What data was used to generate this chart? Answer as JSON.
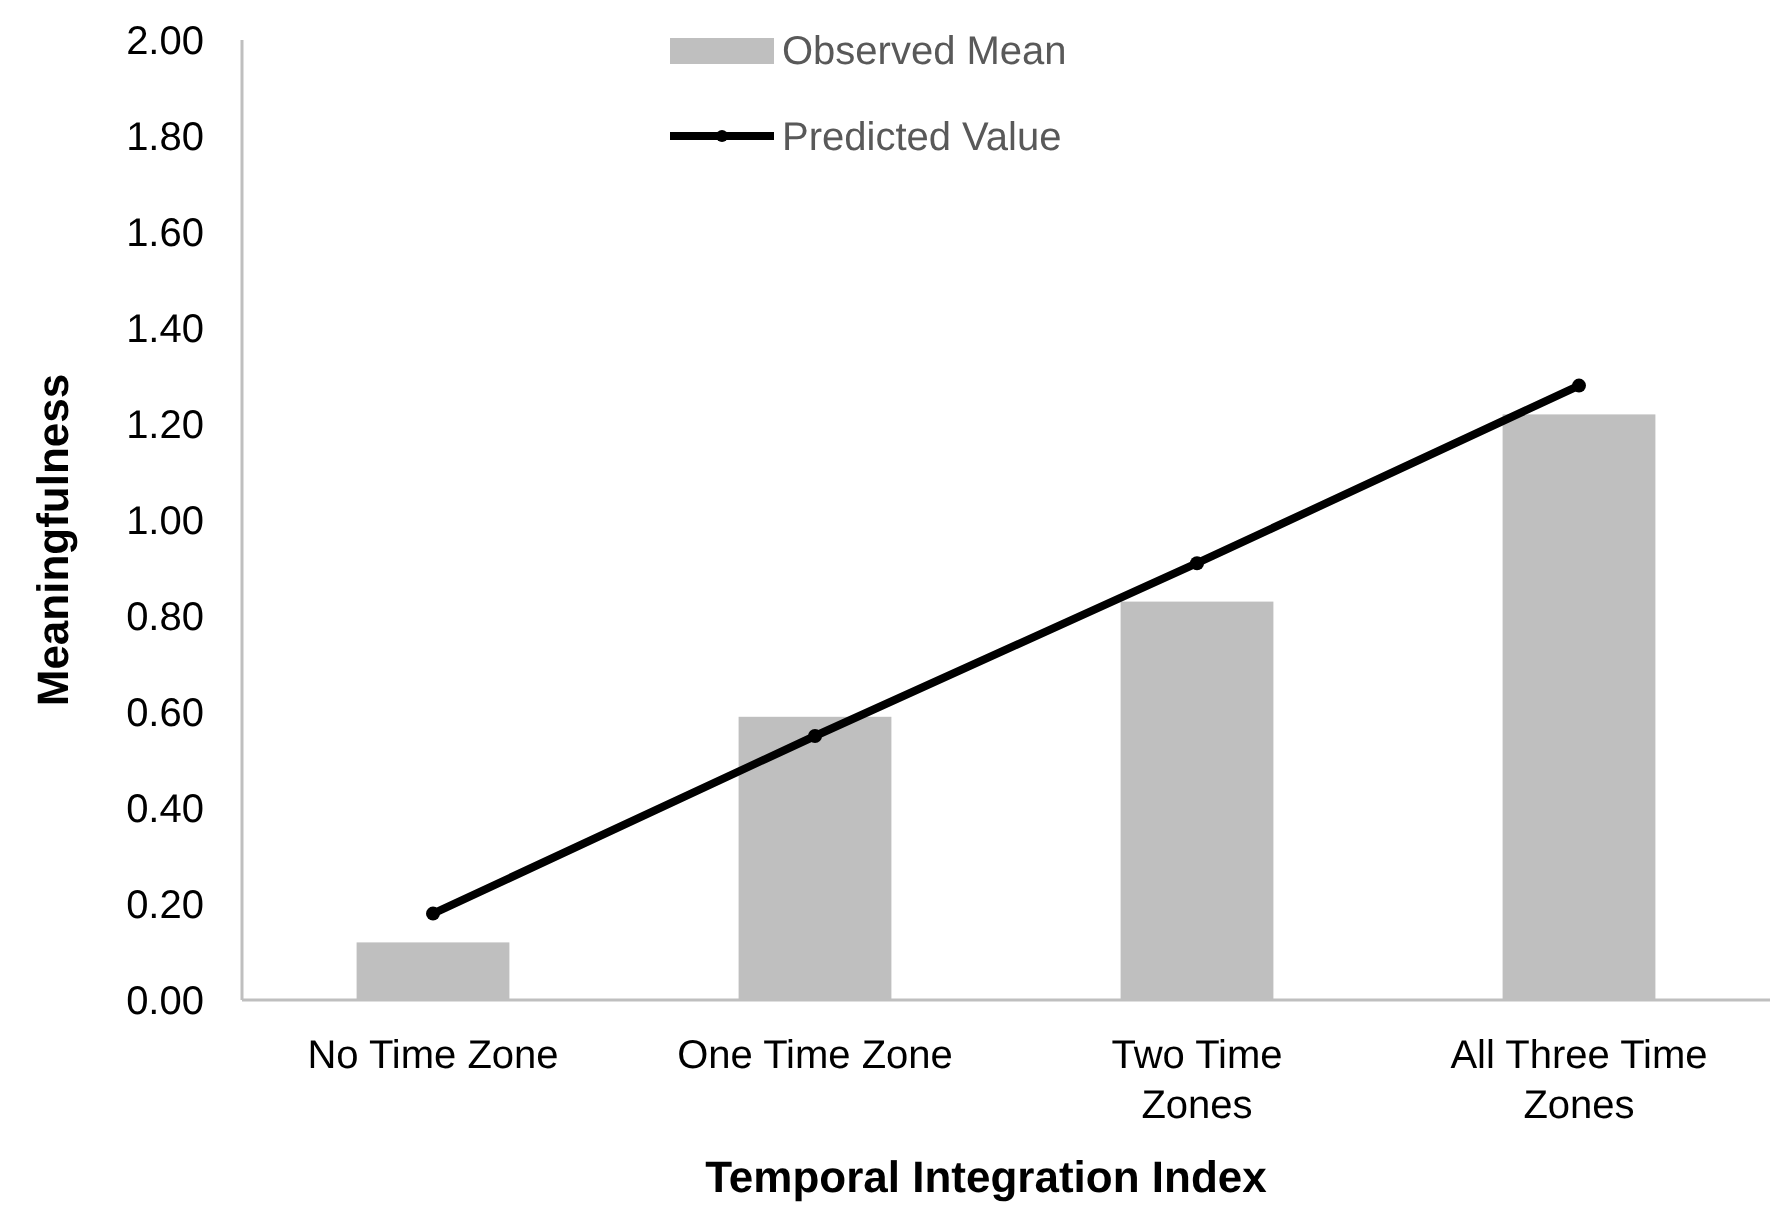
{
  "chart_data": {
    "type": "bar",
    "xlabel": "Temporal Integration Index",
    "ylabel": "Meaningfulness",
    "categories": [
      "No Time Zone",
      "One Time Zone",
      "Two Time Zones",
      "All Three Time Zones"
    ],
    "series": [
      {
        "name": "Observed Mean",
        "color": "#bfbfbf",
        "values": [
          0.12,
          0.59,
          0.83,
          1.22
        ]
      },
      {
        "name": "Predicted Value",
        "type": "line",
        "color": "#000000",
        "marker": "circle",
        "values": [
          0.18,
          0.55,
          0.91,
          1.28
        ]
      }
    ],
    "ylim": [
      0,
      2
    ],
    "yticks": [
      {
        "value": 0,
        "label": "0.00"
      },
      {
        "value": 0.2,
        "label": "0.20"
      },
      {
        "value": 0.4,
        "label": "0.40"
      },
      {
        "value": 0.6,
        "label": "0.60"
      },
      {
        "value": 0.8,
        "label": "0.80"
      },
      {
        "value": 1,
        "label": "1.00"
      },
      {
        "value": 1.2,
        "label": "1.20"
      },
      {
        "value": 1.4,
        "label": "1.40"
      },
      {
        "value": 1.6,
        "label": "1.60"
      },
      {
        "value": 1.8,
        "label": "1.80"
      },
      {
        "value": 2,
        "label": "2.00"
      }
    ],
    "grid": false,
    "legend": "top"
  }
}
